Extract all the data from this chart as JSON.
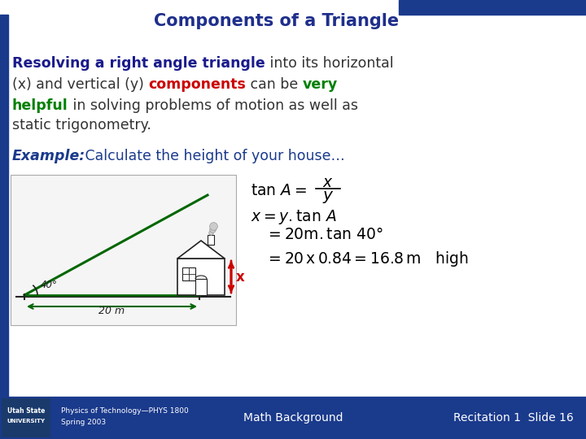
{
  "title": "Components of a Triangle",
  "title_color": "#1f2f8c",
  "bg_color": "#ffffff",
  "header_bar_color": "#1a3a8c",
  "footer_bar_color": "#1a3a8c",
  "left_bar_color": "#1a3a8c",
  "top_right_bar_color": "#1a3a8c",
  "para_line1_parts": [
    {
      "text": "Resolving a right angle triangle",
      "color": "#1a1a8c",
      "bold": true
    },
    {
      "text": " into its horizontal",
      "color": "#333333",
      "bold": false
    }
  ],
  "para_line2_parts": [
    {
      "text": "(x) and vertical (y) ",
      "color": "#333333",
      "bold": false
    },
    {
      "text": "components",
      "color": "#cc0000",
      "bold": true
    },
    {
      "text": " can be ",
      "color": "#333333",
      "bold": false
    },
    {
      "text": "very",
      "color": "#008000",
      "bold": true
    }
  ],
  "para_line3_parts": [
    {
      "text": "helpful",
      "color": "#008000",
      "bold": true
    },
    {
      "text": " in solving problems of motion as well as",
      "color": "#333333",
      "bold": false
    }
  ],
  "para_line4_parts": [
    {
      "text": "static trigonometry.",
      "color": "#333333",
      "bold": false
    }
  ],
  "example_label": "Example:",
  "example_text": "   Calculate the height of your house…",
  "example_color": "#1a3a8c",
  "footer_course_line1": "Physics of Technology—PHYS 1800",
  "footer_course_line2": "Spring 2003",
  "footer_center": "Math Background",
  "footer_right": "Recitation 1  Slide 16",
  "footer_text_color": "#ffffff",
  "green_color": "#006600",
  "red_color": "#cc0000",
  "math_text_color": "#000000"
}
